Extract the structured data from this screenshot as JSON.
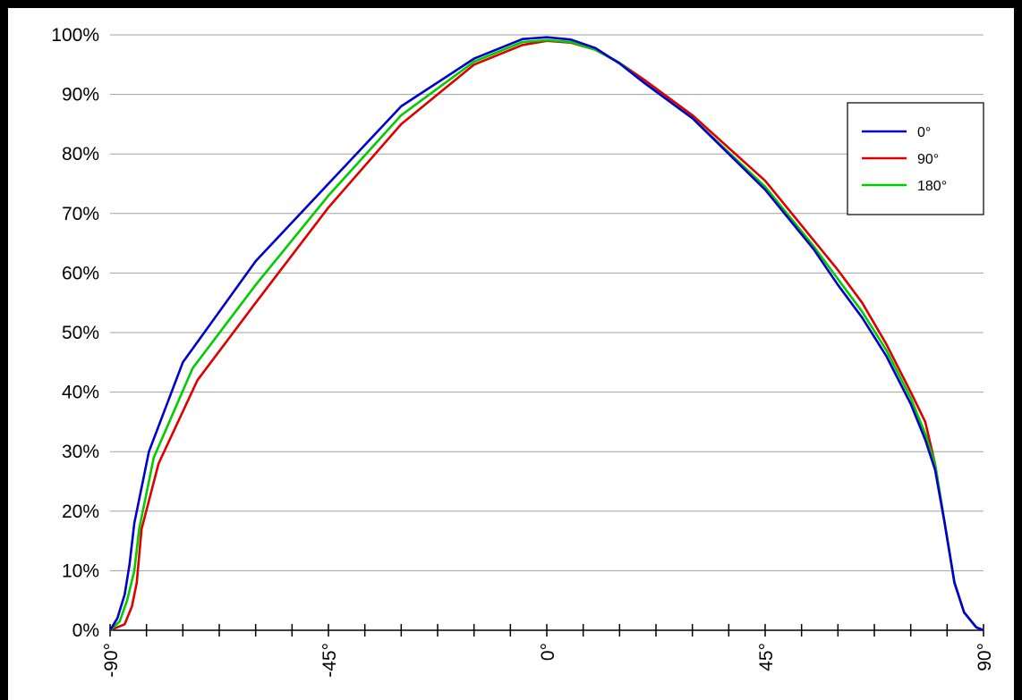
{
  "chart_data": {
    "type": "line",
    "title": "",
    "xlabel": "",
    "ylabel": "",
    "xlim": [
      -90,
      90
    ],
    "ylim": [
      0,
      100
    ],
    "x_ticks": [
      -90,
      -45,
      0,
      45,
      90
    ],
    "x_minor_step": 7.5,
    "x_tick_labels": [
      "-90°",
      "-45°",
      "0°",
      "45°",
      "90°"
    ],
    "y_ticks": [
      0,
      10,
      20,
      30,
      40,
      50,
      60,
      70,
      80,
      90,
      100
    ],
    "y_tick_labels": [
      "0%",
      "10%",
      "20%",
      "30%",
      "40%",
      "50%",
      "60%",
      "70%",
      "80%",
      "90%",
      "100%"
    ],
    "grid": "horizontal",
    "legend_position": "top-right",
    "series": [
      {
        "name": "0°",
        "color": "#0000cc",
        "points": [
          [
            -90,
            0
          ],
          [
            -88.5,
            2
          ],
          [
            -87,
            6
          ],
          [
            -86,
            11
          ],
          [
            -85,
            18
          ],
          [
            -82,
            30
          ],
          [
            -75,
            45
          ],
          [
            -60,
            62
          ],
          [
            -45,
            75
          ],
          [
            -30,
            88
          ],
          [
            -15,
            96
          ],
          [
            -5,
            99.3
          ],
          [
            0,
            99.6
          ],
          [
            5,
            99.2
          ],
          [
            10,
            97.8
          ],
          [
            15,
            95.2
          ],
          [
            20,
            92
          ],
          [
            30,
            86
          ],
          [
            45,
            74
          ],
          [
            55,
            64
          ],
          [
            60,
            58
          ],
          [
            65,
            52.5
          ],
          [
            70,
            46
          ],
          [
            75,
            38
          ],
          [
            78,
            32
          ],
          [
            80,
            27
          ],
          [
            82,
            18
          ],
          [
            84,
            8
          ],
          [
            86,
            3
          ],
          [
            88.5,
            0.5
          ],
          [
            90,
            0
          ]
        ]
      },
      {
        "name": "90°",
        "color": "#dd0000",
        "points": [
          [
            -90,
            0
          ],
          [
            -87,
            1
          ],
          [
            -85.5,
            4
          ],
          [
            -84.5,
            8
          ],
          [
            -83.5,
            17
          ],
          [
            -80,
            28
          ],
          [
            -72,
            42
          ],
          [
            -60,
            55
          ],
          [
            -45,
            71
          ],
          [
            -30,
            85
          ],
          [
            -15,
            95
          ],
          [
            -5,
            98.3
          ],
          [
            0,
            99
          ],
          [
            5,
            98.7
          ],
          [
            10,
            97.5
          ],
          [
            15,
            95.3
          ],
          [
            20,
            92.5
          ],
          [
            30,
            86.5
          ],
          [
            45,
            75.5
          ],
          [
            55,
            65.5
          ],
          [
            60,
            60.5
          ],
          [
            65,
            55
          ],
          [
            70,
            48
          ],
          [
            75,
            40
          ],
          [
            78,
            35
          ],
          [
            80,
            28
          ],
          [
            82,
            18
          ],
          [
            84,
            8
          ],
          [
            86,
            3
          ],
          [
            88.5,
            0.5
          ],
          [
            90,
            0
          ]
        ]
      },
      {
        "name": "180°",
        "color": "#00cc00",
        "points": [
          [
            -90,
            0
          ],
          [
            -88,
            1.5
          ],
          [
            -86.5,
            5
          ],
          [
            -85,
            10
          ],
          [
            -84,
            17
          ],
          [
            -81,
            29
          ],
          [
            -73,
            44
          ],
          [
            -60,
            58
          ],
          [
            -45,
            73
          ],
          [
            -30,
            86.5
          ],
          [
            -15,
            95.5
          ],
          [
            -5,
            98.8
          ],
          [
            0,
            99.1
          ],
          [
            5,
            98.8
          ],
          [
            10,
            97.5
          ],
          [
            15,
            95.3
          ],
          [
            20,
            92
          ],
          [
            30,
            86
          ],
          [
            45,
            74.5
          ],
          [
            55,
            64.5
          ],
          [
            60,
            59
          ],
          [
            65,
            53.5
          ],
          [
            70,
            47
          ],
          [
            75,
            39
          ],
          [
            78,
            33
          ],
          [
            80,
            28
          ],
          [
            82,
            18
          ],
          [
            84,
            8
          ],
          [
            86,
            3
          ],
          [
            88.5,
            0.5
          ],
          [
            90,
            0
          ]
        ]
      }
    ]
  }
}
